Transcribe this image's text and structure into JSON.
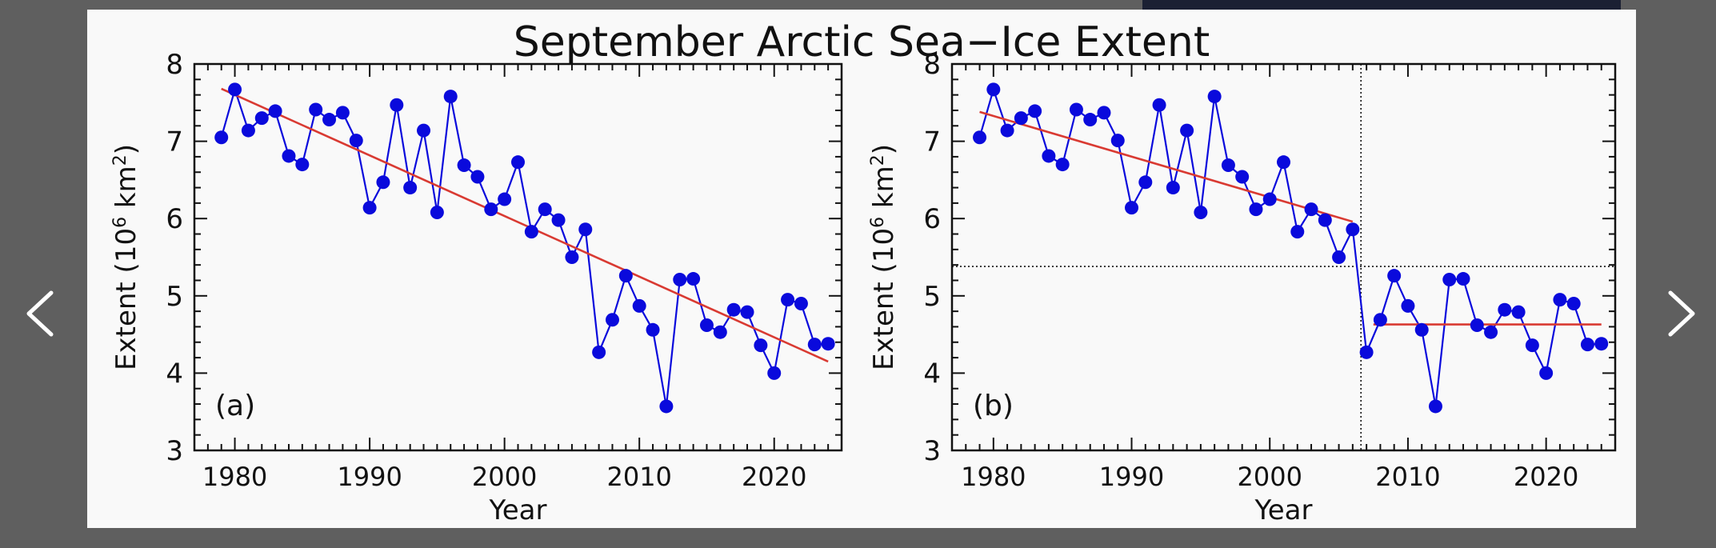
{
  "figure": {
    "title": "September Arctic Sea−Ice Extent"
  },
  "colors": {
    "data": "#0a0adc",
    "fit": "#d93a32",
    "axis": "#111111",
    "background": "#f9f9f9"
  },
  "icons": {
    "prev": "chevron-left-icon",
    "next": "chevron-right-icon"
  },
  "chart_data": [
    {
      "type": "line",
      "panel_label": "(a)",
      "xlabel": "Year",
      "ylabel": "Extent (10^6 km^2)",
      "ylabel_parts": {
        "pre": "Extent (10",
        "sup1": "6",
        "mid": " km",
        "sup2": "2",
        "post": ")"
      },
      "xlim": [
        1977,
        2025
      ],
      "ylim": [
        3,
        8
      ],
      "xticks": [
        1980,
        1990,
        2000,
        2010,
        2020
      ],
      "yticks": [
        3,
        4,
        5,
        6,
        7,
        8
      ],
      "x": [
        1979,
        1980,
        1981,
        1982,
        1983,
        1984,
        1985,
        1986,
        1987,
        1988,
        1989,
        1990,
        1991,
        1992,
        1993,
        1994,
        1995,
        1996,
        1997,
        1998,
        1999,
        2000,
        2001,
        2002,
        2003,
        2004,
        2005,
        2006,
        2007,
        2008,
        2009,
        2010,
        2011,
        2012,
        2013,
        2014,
        2015,
        2016,
        2017,
        2018,
        2019,
        2020,
        2021,
        2022,
        2023,
        2024
      ],
      "y": [
        7.05,
        7.67,
        7.14,
        7.3,
        7.39,
        6.81,
        6.7,
        7.41,
        7.28,
        7.37,
        7.01,
        6.14,
        6.47,
        7.47,
        6.4,
        7.14,
        6.08,
        7.58,
        6.69,
        6.54,
        6.12,
        6.25,
        6.73,
        5.83,
        6.12,
        5.98,
        5.5,
        5.86,
        4.27,
        4.69,
        5.26,
        4.87,
        4.56,
        3.57,
        5.21,
        5.22,
        4.62,
        4.53,
        4.82,
        4.79,
        4.36,
        4.0,
        4.95,
        4.9,
        4.37,
        4.38
      ],
      "fits": [
        {
          "x": [
            1979,
            2024
          ],
          "y": [
            7.68,
            4.15
          ]
        }
      ]
    },
    {
      "type": "line",
      "panel_label": "(b)",
      "xlabel": "Year",
      "ylabel": "Extent (10^6 km^2)",
      "ylabel_parts": {
        "pre": "Extent (10",
        "sup1": "6",
        "mid": " km",
        "sup2": "2",
        "post": ")"
      },
      "xlim": [
        1977,
        2025
      ],
      "ylim": [
        3,
        8
      ],
      "xticks": [
        1980,
        1990,
        2000,
        2010,
        2020
      ],
      "yticks": [
        3,
        4,
        5,
        6,
        7,
        8
      ],
      "x": [
        1979,
        1980,
        1981,
        1982,
        1983,
        1984,
        1985,
        1986,
        1987,
        1988,
        1989,
        1990,
        1991,
        1992,
        1993,
        1994,
        1995,
        1996,
        1997,
        1998,
        1999,
        2000,
        2001,
        2002,
        2003,
        2004,
        2005,
        2006,
        2007,
        2008,
        2009,
        2010,
        2011,
        2012,
        2013,
        2014,
        2015,
        2016,
        2017,
        2018,
        2019,
        2020,
        2021,
        2022,
        2023,
        2024
      ],
      "y": [
        7.05,
        7.67,
        7.14,
        7.3,
        7.39,
        6.81,
        6.7,
        7.41,
        7.28,
        7.37,
        7.01,
        6.14,
        6.47,
        7.47,
        6.4,
        7.14,
        6.08,
        7.58,
        6.69,
        6.54,
        6.12,
        6.25,
        6.73,
        5.83,
        6.12,
        5.98,
        5.5,
        5.86,
        4.27,
        4.69,
        5.26,
        4.87,
        4.56,
        3.57,
        5.21,
        5.22,
        4.62,
        4.53,
        4.82,
        4.79,
        4.36,
        4.0,
        4.95,
        4.9,
        4.37,
        4.38
      ],
      "fits": [
        {
          "x": [
            1979,
            2006
          ],
          "y": [
            7.38,
            5.96
          ]
        },
        {
          "x": [
            2007.5,
            2024
          ],
          "y": [
            4.63,
            4.63
          ]
        }
      ],
      "vline_x": 2006.6,
      "hline_y": 5.38
    }
  ]
}
